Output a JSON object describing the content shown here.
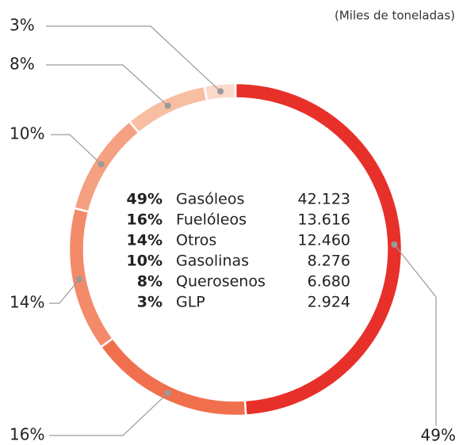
{
  "chart_data": {
    "type": "pie",
    "subtitle": "(Miles de toneladas)",
    "categories": [
      "Gasóleos",
      "Fuelóleos",
      "Otros",
      "Gasolinas",
      "Querosenos",
      "GLP"
    ],
    "values": [
      49,
      16,
      14,
      10,
      8,
      3
    ],
    "value_labels": [
      "49%",
      "16%",
      "14%",
      "10%",
      "8%",
      "3%"
    ],
    "amounts": [
      42123,
      13616,
      12460,
      8276,
      6680,
      2924
    ],
    "amount_labels": [
      "42.123",
      "13.616",
      "12.460",
      "8.276",
      "6.680",
      "2.924"
    ],
    "colors": [
      "#e8302a",
      "#f0704d",
      "#f38a6a",
      "#f4a081",
      "#f8bea2",
      "#fbdaca"
    ]
  }
}
